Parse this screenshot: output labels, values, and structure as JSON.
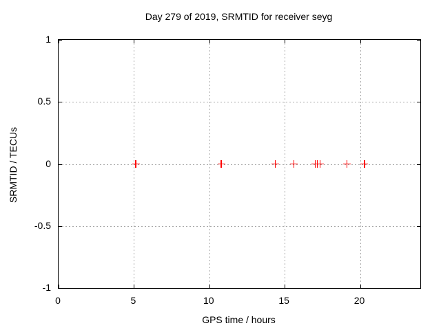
{
  "title": "Day 279 of 2019, SRMTID for receiver seyg",
  "colors": {
    "background": "#ffffff",
    "axis": "#000000",
    "grid": "#a8a8a8",
    "marker": "#ff0000",
    "text": "#000000"
  },
  "chart_data": {
    "type": "scatter",
    "title": "Day 279 of 2019, SRMTID for receiver seyg",
    "xlabel": "GPS time / hours",
    "ylabel": "SRMTID / TECUs",
    "xlim": [
      0,
      24
    ],
    "ylim": [
      -1,
      1
    ],
    "xticks": [
      0,
      5,
      10,
      15,
      20
    ],
    "yticks": [
      1,
      0.5,
      0,
      -0.5,
      -1
    ],
    "grid": true,
    "legend": "none",
    "marker_style": "plus",
    "series": [
      {
        "name": "SRMTID",
        "x": [
          5.13,
          10.79,
          14.37,
          15.62,
          17.03,
          17.17,
          17.35,
          19.14,
          20.29
        ],
        "y": [
          0,
          0,
          0,
          0,
          0,
          0,
          0,
          0,
          0
        ]
      }
    ]
  }
}
